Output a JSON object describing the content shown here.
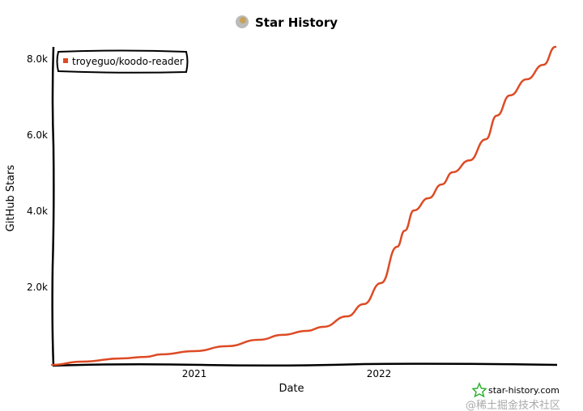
{
  "chart_data": {
    "type": "line",
    "title": "Star History",
    "xlabel": "Date",
    "ylabel": "GitHub Stars",
    "ylim": [
      0,
      8000
    ],
    "y_ticks": [
      "2.0k",
      "4.0k",
      "6.0k",
      "8.0k"
    ],
    "y_tick_values": [
      2000,
      4000,
      6000,
      8000
    ],
    "x_ticks": [
      "2021",
      "2022"
    ],
    "x_tick_values": [
      "2021-01-01",
      "2022-01-01"
    ],
    "grid": false,
    "legend_position": "top-left",
    "series": [
      {
        "name": "troyeguo/koodo-reader",
        "color": "#dd4b25",
        "points": [
          [
            "2020-03-25",
            0
          ],
          [
            "2020-05-22",
            85
          ],
          [
            "2020-08-10",
            170
          ],
          [
            "2020-09-27",
            210
          ],
          [
            "2020-10-27",
            275
          ],
          [
            "2021-01-01",
            360
          ],
          [
            "2021-03-07",
            490
          ],
          [
            "2021-05-08",
            655
          ],
          [
            "2021-06-25",
            785
          ],
          [
            "2021-08-11",
            890
          ],
          [
            "2021-09-13",
            995
          ],
          [
            "2021-10-30",
            1270
          ],
          [
            "2021-12-02",
            1590
          ],
          [
            "2022-01-05",
            2140
          ],
          [
            "2022-02-06",
            3090
          ],
          [
            "2022-02-21",
            3510
          ],
          [
            "2022-03-11",
            4040
          ],
          [
            "2022-04-09",
            4360
          ],
          [
            "2022-05-05",
            4720
          ],
          [
            "2022-05-27",
            5040
          ],
          [
            "2022-06-29",
            5350
          ],
          [
            "2022-07-31",
            5900
          ],
          [
            "2022-08-22",
            6520
          ],
          [
            "2022-09-17",
            7050
          ],
          [
            "2022-10-20",
            7470
          ],
          [
            "2022-11-22",
            7850
          ],
          [
            "2022-12-16",
            8320
          ]
        ]
      }
    ],
    "footer": "star-history.com",
    "watermark": "@稀土掘金技术社区"
  }
}
